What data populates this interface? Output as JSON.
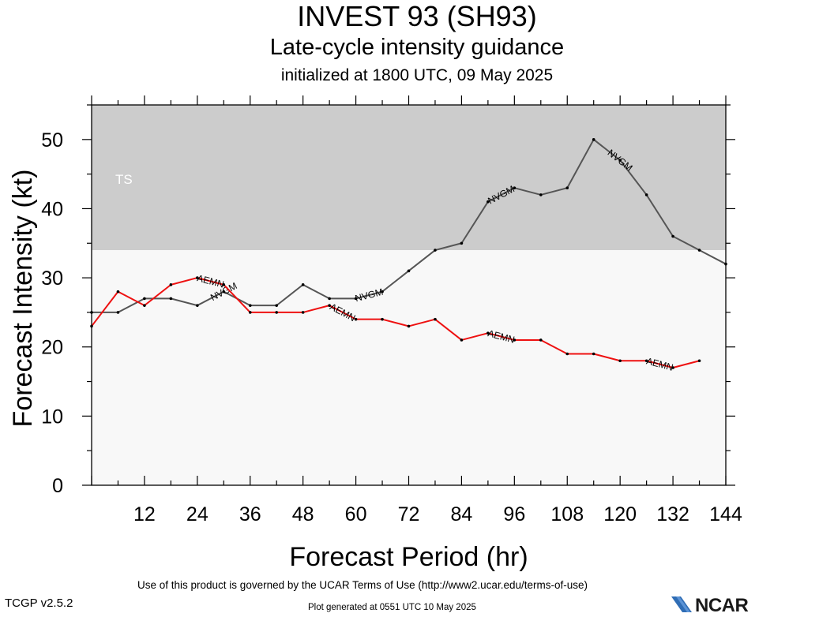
{
  "header": {
    "title": "INVEST 93 (SH93)",
    "subtitle": "Late-cycle intensity guidance",
    "init": "initialized at 1800 UTC, 09 May 2025"
  },
  "footer": {
    "terms": "Use of this product is governed by the UCAR Terms of Use (http://www2.ucar.edu/terms-of-use)",
    "version": "TCGP v2.5.2",
    "generated": "Plot generated at 0551 UTC   10 May 2025",
    "logo": "NCAR"
  },
  "chart_data": {
    "type": "line",
    "title": "INVEST 93 (SH93)",
    "subtitle": "Late-cycle intensity guidance",
    "xlabel": "Forecast Period (hr)",
    "ylabel": "Forecast Intensity (kt)",
    "xlim": [
      0,
      144
    ],
    "ylim": [
      0,
      55
    ],
    "x_ticks": [
      12,
      24,
      36,
      48,
      60,
      72,
      84,
      96,
      108,
      120,
      132,
      144
    ],
    "y_ticks": [
      0,
      10,
      20,
      30,
      40,
      50
    ],
    "grid": false,
    "bands": [
      {
        "name": "TS",
        "from": 34,
        "to": 55,
        "color": "#cccccc"
      },
      {
        "name": "",
        "from": 0,
        "to": 34,
        "color": "#f8f8f8"
      }
    ],
    "series": [
      {
        "name": "NVGM",
        "color": "#555555",
        "x": [
          0,
          6,
          12,
          18,
          24,
          30,
          36,
          42,
          48,
          54,
          60,
          66,
          72,
          78,
          84,
          90,
          96,
          102,
          108,
          114,
          120,
          126,
          132,
          138,
          144
        ],
        "y": [
          25,
          25,
          27,
          27,
          26,
          28,
          26,
          26,
          29,
          27,
          27,
          28,
          31,
          34,
          35,
          41,
          43,
          42,
          43,
          50,
          47,
          42,
          36,
          34,
          32
        ],
        "label_positions": [
          30,
          63,
          93,
          120
        ]
      },
      {
        "name": "AEMN",
        "color": "#ee1111",
        "x": [
          0,
          6,
          12,
          18,
          24,
          30,
          36,
          42,
          48,
          54,
          60,
          66,
          72,
          78,
          84,
          90,
          96,
          102,
          108,
          114,
          120,
          126,
          132,
          138
        ],
        "y": [
          23,
          28,
          26,
          29,
          30,
          29,
          25,
          25,
          25,
          26,
          24,
          24,
          23,
          24,
          21,
          22,
          21,
          21,
          19,
          19,
          18,
          18,
          17,
          18
        ],
        "label_positions": [
          27,
          57,
          93,
          129
        ]
      }
    ]
  }
}
